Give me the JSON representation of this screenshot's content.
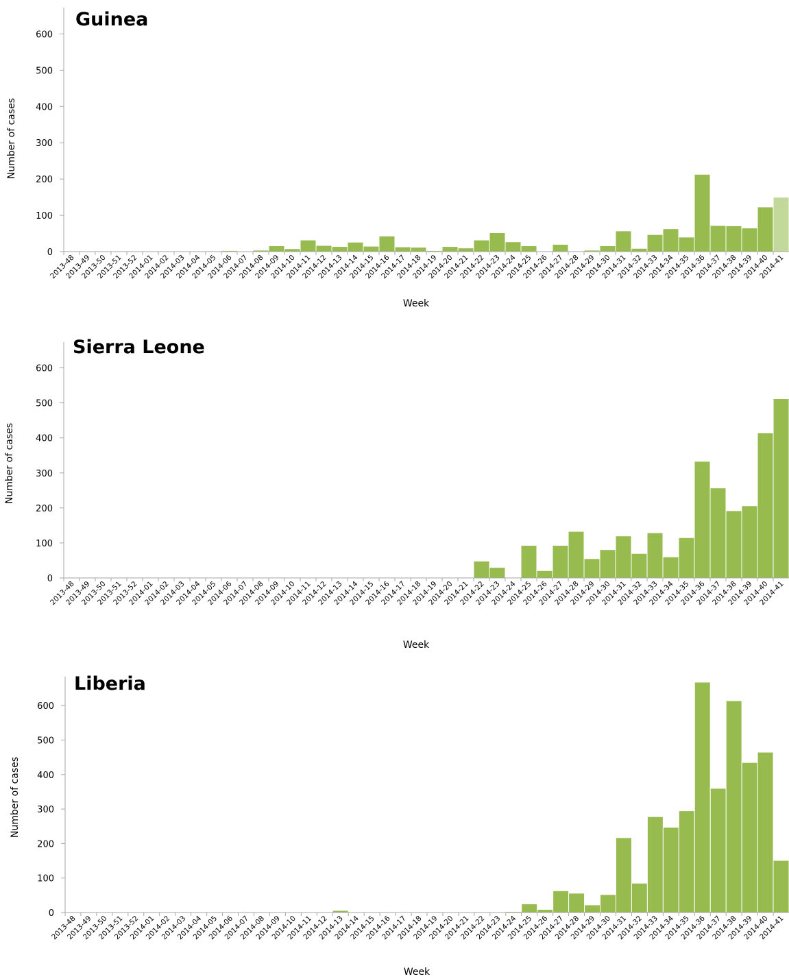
{
  "chart_data": [
    {
      "type": "bar",
      "title": "Guinea",
      "xlabel": "Week",
      "ylabel": "Number of cases",
      "ylim": [
        0,
        650
      ],
      "yticks": [
        0,
        100,
        200,
        300,
        400,
        500,
        600
      ],
      "categories": [
        "2013-48",
        "2013-49",
        "2013-50",
        "2013-51",
        "2013-52",
        "2014-01",
        "2014-02",
        "2014-03",
        "2014-04",
        "2014-05",
        "2014-06",
        "2014-07",
        "2014-08",
        "2014-09",
        "2014-10",
        "2014-11",
        "2014-12",
        "2014-13",
        "2014-14",
        "2014-15",
        "2014-16",
        "2014-17",
        "2014-18",
        "2014-19",
        "2014-20",
        "2014-21",
        "2014-22",
        "2014-23",
        "2014-24",
        "2014-25",
        "2014-26",
        "2014-27",
        "2014-28",
        "2014-29",
        "2014-30",
        "2014-31",
        "2014-32",
        "2014-33",
        "2014-34",
        "2014-35",
        "2014-36",
        "2014-37",
        "2014-38",
        "2014-39",
        "2014-40",
        "2014-41"
      ],
      "values": [
        0,
        0,
        0,
        0,
        1,
        0,
        0,
        0,
        1,
        1,
        3,
        1,
        4,
        16,
        8,
        32,
        17,
        14,
        26,
        15,
        43,
        13,
        12,
        3,
        14,
        10,
        32,
        52,
        27,
        16,
        0,
        20,
        2,
        4,
        16,
        57,
        9,
        47,
        63,
        40,
        213,
        72,
        71,
        65,
        123,
        150
      ],
      "bar_color": "#97bb4f",
      "last_bar_color": "#c3d99b",
      "grid": false
    },
    {
      "type": "bar",
      "title": "Sierra Leone",
      "xlabel": "Week",
      "ylabel": "Number of cases",
      "ylim": [
        0,
        650
      ],
      "yticks": [
        0,
        100,
        200,
        300,
        400,
        500,
        600
      ],
      "categories": [
        "2013-48",
        "2013-49",
        "2013-50",
        "2013-51",
        "2013-52",
        "2014-01",
        "2014-02",
        "2014-03",
        "2014-04",
        "2014-05",
        "2014-06",
        "2014-07",
        "2014-08",
        "2014-09",
        "2014-10",
        "2014-11",
        "2014-12",
        "2014-13",
        "2014-14",
        "2014-15",
        "2014-16",
        "2014-17",
        "2014-18",
        "2014-19",
        "2014-20",
        "2014-21",
        "2014-22",
        "2014-23",
        "2014-24",
        "2014-25",
        "2014-26",
        "2014-27",
        "2014-28",
        "2014-29",
        "2014-30",
        "2014-31",
        "2014-32",
        "2014-33",
        "2014-34",
        "2014-35",
        "2014-36",
        "2014-37",
        "2014-38",
        "2014-39",
        "2014-40",
        "2014-41"
      ],
      "values": [
        0,
        0,
        0,
        0,
        0,
        0,
        0,
        0,
        0,
        0,
        0,
        0,
        0,
        0,
        0,
        0,
        0,
        0,
        0,
        0,
        0,
        0,
        0,
        0,
        0,
        0,
        48,
        30,
        0,
        93,
        21,
        93,
        133,
        55,
        81,
        120,
        70,
        129,
        60,
        115,
        333,
        257,
        192,
        206,
        414,
        512
      ],
      "bar_color": "#97bb4f",
      "grid": false
    },
    {
      "type": "bar",
      "title": "Liberia",
      "xlabel": "Week",
      "ylabel": "Number of cases",
      "ylim": [
        0,
        660
      ],
      "yticks": [
        0,
        100,
        200,
        300,
        400,
        500,
        600
      ],
      "categories": [
        "2013-48",
        "2013-49",
        "2013-50",
        "2013-51",
        "2013-52",
        "2014-01",
        "2014-02",
        "2014-03",
        "2014-04",
        "2014-05",
        "2014-06",
        "2014-07",
        "2014-08",
        "2014-09",
        "2014-10",
        "2014-11",
        "2014-12",
        "2014-13",
        "2014-14",
        "2014-15",
        "2014-16",
        "2014-17",
        "2014-18",
        "2014-19",
        "2014-20",
        "2014-21",
        "2014-22",
        "2014-23",
        "2014-24",
        "2014-25",
        "2014-26",
        "2014-27",
        "2014-28",
        "2014-29",
        "2014-30",
        "2014-31",
        "2014-32",
        "2014-33",
        "2014-34",
        "2014-35",
        "2014-36",
        "2014-37",
        "2014-38",
        "2014-39",
        "2014-40",
        "2014-41"
      ],
      "values": [
        0,
        0,
        0,
        0,
        0,
        0,
        0,
        0,
        0,
        0,
        0,
        0,
        0,
        0,
        0,
        0,
        1,
        6,
        2,
        0,
        0,
        0,
        0,
        0,
        0,
        0,
        0,
        0,
        3,
        25,
        9,
        63,
        56,
        22,
        52,
        217,
        85,
        278,
        247,
        295,
        668,
        360,
        614,
        435,
        465,
        151
      ],
      "bar_color": "#97bb4f",
      "grid": false
    }
  ]
}
